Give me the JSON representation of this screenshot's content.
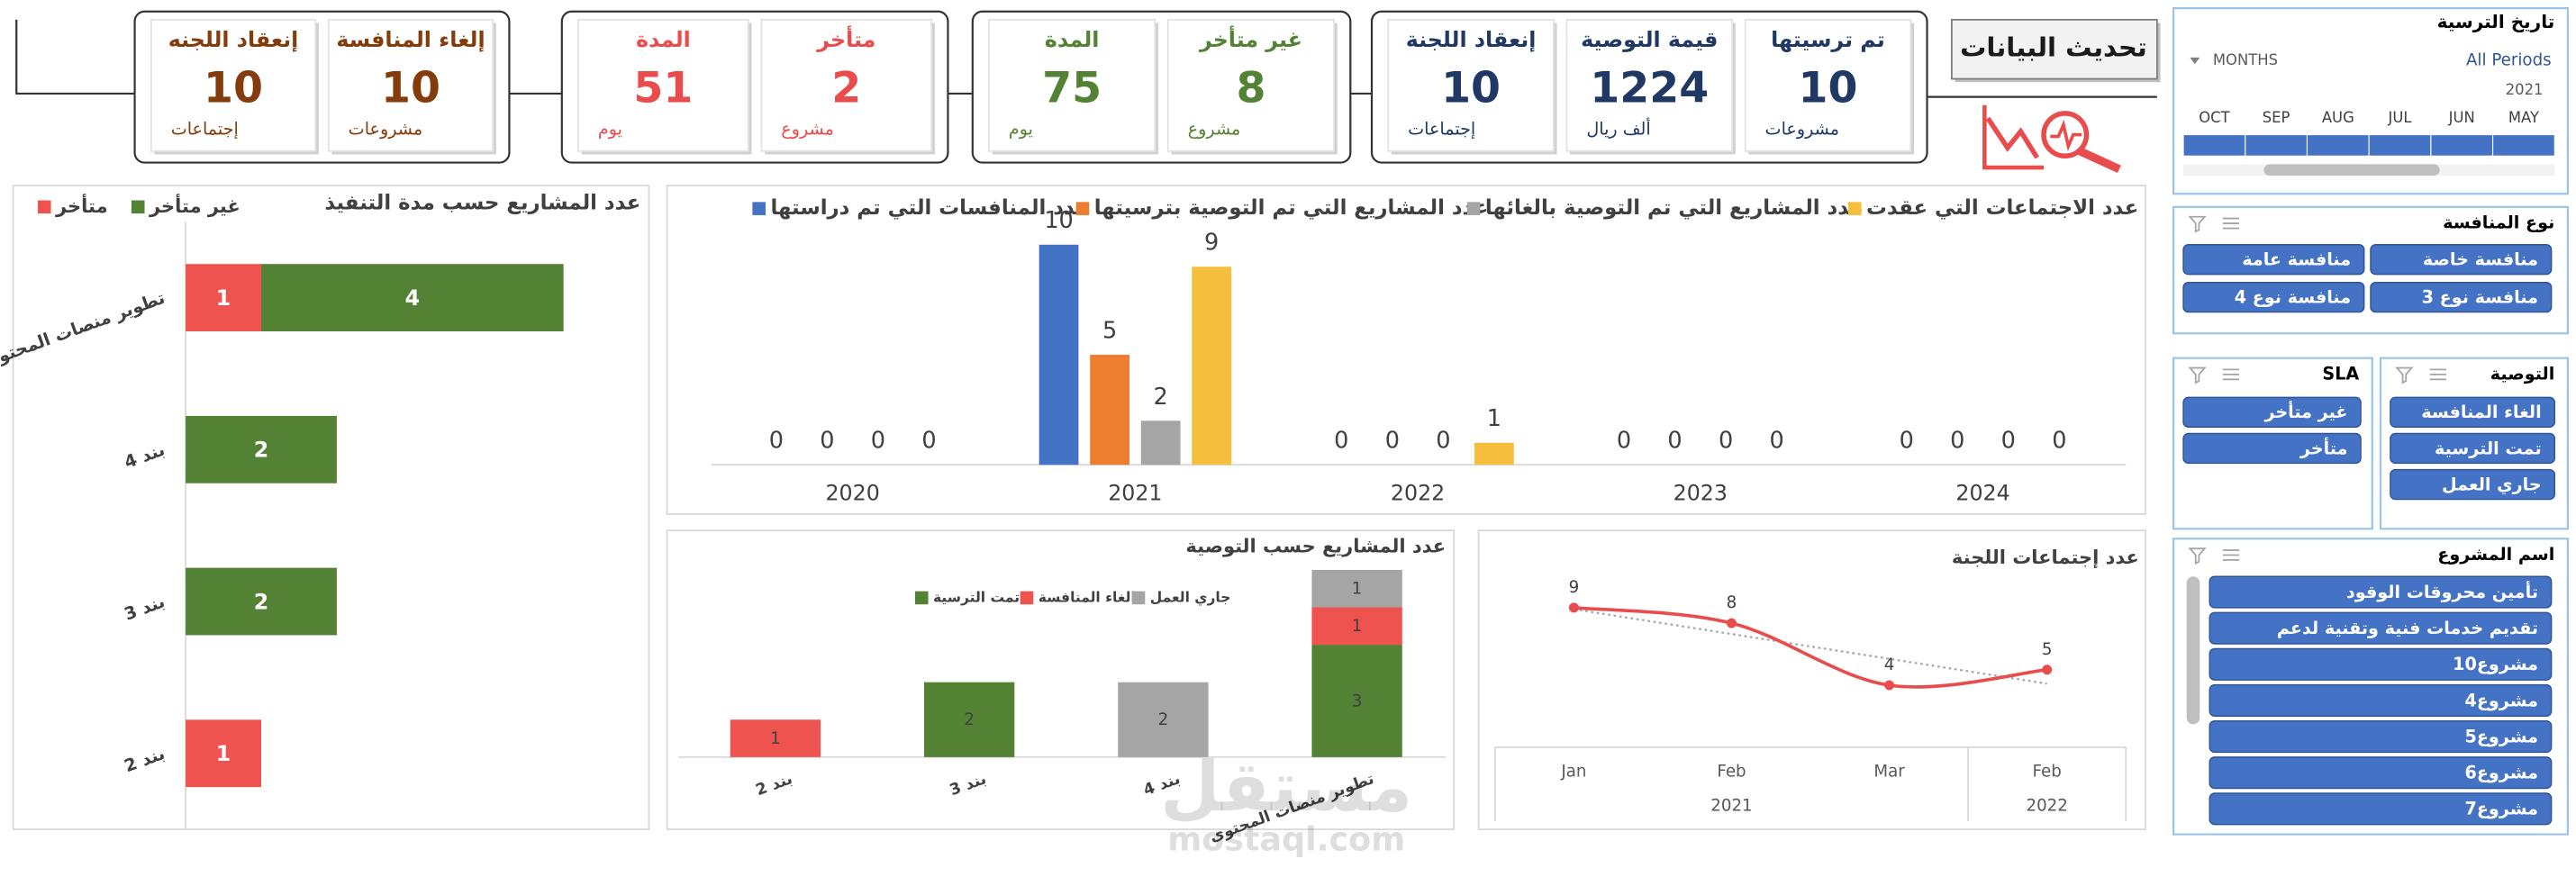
{
  "button": "تحديث البيانات",
  "watermark": {
    "brand": "مستقل",
    "url": "mostaql.com"
  },
  "kpi_groups": [
    {
      "color": "#1f3864",
      "cards": [
        {
          "title": "تم ترسيتها",
          "value": 10,
          "unit": "مشروعات"
        },
        {
          "title": "قيمة التوصية",
          "value": 1224,
          "unit": "ألف ريال"
        },
        {
          "title": "إنعقاد اللجنة",
          "value": 10,
          "unit": "إجتماعات"
        }
      ]
    },
    {
      "color": "#548235",
      "cards": [
        {
          "title": "غير متأخر",
          "value": 8,
          "unit": "مشروع"
        },
        {
          "title": "المدة",
          "value": 75,
          "unit": "يوم"
        }
      ]
    },
    {
      "color": "#e84c4c",
      "cards": [
        {
          "title": "متأخر",
          "value": 2,
          "unit": "مشروع"
        },
        {
          "title": "المدة",
          "value": 51,
          "unit": "يوم"
        }
      ]
    },
    {
      "color": "#843c0c",
      "cards": [
        {
          "title": "إلغاء المنافسة",
          "value": 10,
          "unit": "مشروعات"
        },
        {
          "title": "إنعقاد اللجنه",
          "value": 10,
          "unit": "إجتماعات"
        }
      ]
    }
  ],
  "timeline": {
    "title": "تاريخ الترسية",
    "level": "MONTHS",
    "selection": "All Periods",
    "year": "2021",
    "months": [
      "OCT",
      "SEP",
      "AUG",
      "JUL",
      "JUN",
      "MAY"
    ]
  },
  "slicers": [
    {
      "title": "نوع المنافسة",
      "items": [
        "منافسة خاصة",
        "منافسة عامة",
        "منافسة نوع 3",
        "منافسة نوع 4"
      ]
    },
    {
      "title": "التوصية",
      "items": [
        "الغاء المنافسة",
        "تمت الترسية",
        "جاري العمل"
      ]
    },
    {
      "title": "SLA",
      "items": [
        "غير متأخر",
        "متأخر"
      ]
    },
    {
      "title": "اسم المشروع",
      "items": [
        "تأمين محروقات الوقود",
        "تقديم خدمات فنية وتقنية لدعم",
        "مشروع10",
        "مشروع4",
        "مشروع5",
        "مشروع6",
        "مشروع7"
      ]
    }
  ],
  "chart_data": [
    {
      "type": "bar",
      "orientation": "horizontal",
      "stacked": true,
      "title": "عدد المشاريع حسب مدة التنفيذ",
      "categories": [
        "تطوير منصات المحتوى",
        "بند 4",
        "بند 3",
        "بند 2"
      ],
      "series": [
        {
          "name": "متأخر",
          "color": "#ef5350",
          "values": [
            1,
            null,
            null,
            1
          ]
        },
        {
          "name": "غير متأخر",
          "color": "#548235",
          "values": [
            4,
            2,
            2,
            null
          ]
        }
      ]
    },
    {
      "type": "bar",
      "orientation": "vertical",
      "stacked": false,
      "categories": [
        "2020",
        "2021",
        "2022",
        "2023",
        "2024"
      ],
      "series": [
        {
          "name": "عدد المنافسات التي تم دراستها",
          "color": "#4472c4",
          "values": [
            0,
            10,
            0,
            0,
            0
          ]
        },
        {
          "name": "عدد المشاريع التي تم التوصية بترسيتها",
          "color": "#ed7d31",
          "values": [
            0,
            5,
            0,
            0,
            0
          ]
        },
        {
          "name": "عدد المشاريع التي تم التوصية بالغائها",
          "color": "#a5a5a5",
          "values": [
            0,
            2,
            0,
            0,
            0
          ]
        },
        {
          "name": "عدد الاجتماعات التي عقدت",
          "color": "#f5bf3d",
          "values": [
            0,
            9,
            1,
            0,
            0
          ]
        }
      ]
    },
    {
      "type": "bar",
      "orientation": "vertical",
      "stacked": true,
      "title": "عدد المشاريع حسب التوصية",
      "categories": [
        "بند 2",
        "بند 3",
        "بند 4",
        "تطوير منصات المحتوى"
      ],
      "series": [
        {
          "name": "تمت الترسية",
          "color": "#548235",
          "values": [
            null,
            2,
            null,
            3
          ]
        },
        {
          "name": "الغاء المنافسة",
          "color": "#ef5350",
          "values": [
            1,
            null,
            null,
            1
          ]
        },
        {
          "name": "جاري العمل",
          "color": "#a5a5a5",
          "values": [
            null,
            null,
            2,
            1
          ]
        }
      ]
    },
    {
      "type": "line",
      "title": "عدد إجتماعات اللجنة",
      "categories": [
        "Jan",
        "Feb",
        "Mar",
        "Feb"
      ],
      "category_groups": [
        "2021",
        "2021",
        "2021",
        "2022"
      ],
      "values": [
        9,
        8,
        4,
        5
      ],
      "color": "#e84c4c",
      "trendline": true
    }
  ]
}
